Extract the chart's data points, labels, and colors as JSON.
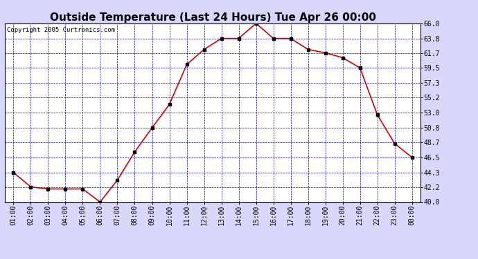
{
  "title": "Outside Temperature (Last 24 Hours) Tue Apr 26 00:00",
  "copyright": "Copyright 2005 Curtronics.com",
  "x_labels": [
    "01:00",
    "02:00",
    "03:00",
    "04:00",
    "05:00",
    "06:00",
    "07:00",
    "08:00",
    "09:00",
    "10:00",
    "11:00",
    "12:00",
    "13:00",
    "14:00",
    "15:00",
    "16:00",
    "17:00",
    "18:00",
    "19:00",
    "20:00",
    "21:00",
    "22:00",
    "23:00",
    "00:00"
  ],
  "y_values": [
    44.3,
    42.2,
    41.9,
    41.9,
    41.9,
    40.0,
    43.2,
    47.3,
    50.8,
    54.2,
    60.0,
    62.2,
    63.8,
    63.8,
    66.0,
    63.8,
    63.8,
    62.2,
    61.7,
    61.0,
    59.5,
    52.7,
    48.5,
    46.5
  ],
  "line_color": "#cc0000",
  "marker_color": "#000000",
  "background_color": "#d8d8ff",
  "plot_bg_color": "#ffffff",
  "grid_color": "#0000bb",
  "title_color": "#000000",
  "border_color": "#000000",
  "ylim": [
    40.0,
    66.0
  ],
  "yticks": [
    40.0,
    42.2,
    44.3,
    46.5,
    48.7,
    50.8,
    53.0,
    55.2,
    57.3,
    59.5,
    61.7,
    63.8,
    66.0
  ],
  "title_fontsize": 11,
  "tick_fontsize": 7,
  "copyright_fontsize": 6.5
}
